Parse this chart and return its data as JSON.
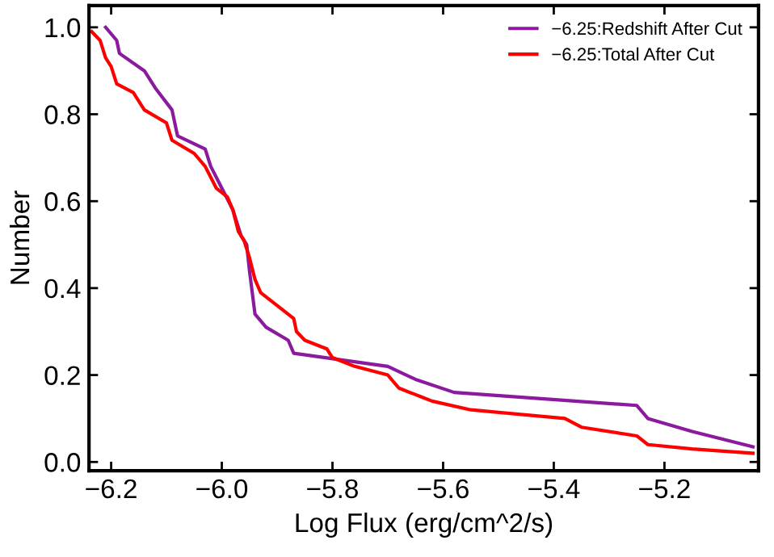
{
  "chart_data": {
    "type": "line",
    "xlabel": "Log Flux (erg/cm^2/s)",
    "ylabel": "Number",
    "xlim": [
      -6.24,
      -5.03
    ],
    "ylim": [
      -0.02,
      1.05
    ],
    "xticks": [
      {
        "value": -6.2,
        "label": "−6.2"
      },
      {
        "value": -6.0,
        "label": "−6.0"
      },
      {
        "value": -5.8,
        "label": "−5.8"
      },
      {
        "value": -5.6,
        "label": "−5.6"
      },
      {
        "value": -5.4,
        "label": "−5.4"
      },
      {
        "value": -5.2,
        "label": "−5.2"
      }
    ],
    "yticks": [
      {
        "value": 0,
        "label": "0.0"
      },
      {
        "value": 0.2,
        "label": "0.2"
      },
      {
        "value": 0.4,
        "label": "0.4"
      },
      {
        "value": 0.6,
        "label": "0.6"
      },
      {
        "value": 0.8,
        "label": "0.8"
      },
      {
        "value": 1,
        "label": "1.0"
      }
    ],
    "grid": false,
    "legend": "top right",
    "marker": "none",
    "line_style": "solid",
    "series": [
      {
        "name": "−6.25:Redshift After Cut",
        "color": "#8b1a9e",
        "x": [
          -6.21,
          -6.19,
          -6.185,
          -6.14,
          -6.12,
          -6.09,
          -6.085,
          -6.08,
          -6.03,
          -6.02,
          -6.0,
          -5.98,
          -5.965,
          -5.955,
          -5.95,
          -5.94,
          -5.92,
          -5.88,
          -5.87,
          -5.7,
          -5.65,
          -5.58,
          -5.25,
          -5.23,
          -5.15,
          -5.04
        ],
        "values": [
          1.0,
          0.97,
          0.94,
          0.9,
          0.86,
          0.81,
          0.78,
          0.75,
          0.72,
          0.68,
          0.63,
          0.58,
          0.52,
          0.5,
          0.44,
          0.34,
          0.31,
          0.28,
          0.25,
          0.22,
          0.19,
          0.16,
          0.13,
          0.1,
          0.07,
          0.035
        ]
      },
      {
        "name": "−6.25:Total After Cut",
        "color": "#ff0000",
        "x": [
          -6.235,
          -6.22,
          -6.21,
          -6.2,
          -6.19,
          -6.16,
          -6.15,
          -6.14,
          -6.1,
          -6.09,
          -6.05,
          -6.03,
          -6.01,
          -5.99,
          -5.98,
          -5.97,
          -5.96,
          -5.95,
          -5.94,
          -5.93,
          -5.91,
          -5.89,
          -5.87,
          -5.865,
          -5.85,
          -5.81,
          -5.8,
          -5.76,
          -5.7,
          -5.68,
          -5.64,
          -5.62,
          -5.55,
          -5.38,
          -5.35,
          -5.25,
          -5.23,
          -5.15,
          -5.04
        ],
        "values": [
          0.99,
          0.97,
          0.93,
          0.91,
          0.87,
          0.85,
          0.83,
          0.81,
          0.78,
          0.74,
          0.71,
          0.68,
          0.63,
          0.61,
          0.58,
          0.53,
          0.51,
          0.47,
          0.42,
          0.39,
          0.37,
          0.35,
          0.33,
          0.3,
          0.28,
          0.26,
          0.24,
          0.22,
          0.2,
          0.17,
          0.15,
          0.14,
          0.12,
          0.1,
          0.08,
          0.06,
          0.04,
          0.03,
          0.02
        ]
      }
    ]
  }
}
